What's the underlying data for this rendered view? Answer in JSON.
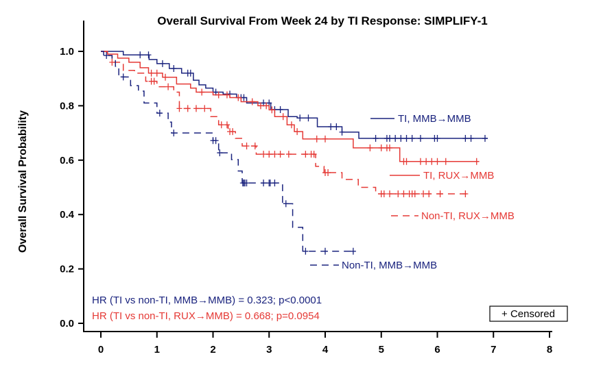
{
  "chart_data": {
    "type": "line",
    "subtype": "kaplan-meier step",
    "title": "Overall Survival From Week 24 by TI Response: SIMPLIFY-1",
    "xlabel": "",
    "ylabel": "Overall Survival Probability",
    "xlim": [
      0,
      8
    ],
    "ylim": [
      0,
      1.1
    ],
    "x_ticks": [
      "0",
      "1",
      "2",
      "3",
      "4",
      "5",
      "6",
      "7",
      "8"
    ],
    "y_ticks": [
      "0.0",
      "0.2",
      "0.4",
      "0.6",
      "0.8",
      "1.0"
    ],
    "grid": false,
    "series": [
      {
        "name": "TI, MMB→MMB",
        "color": "#1a237e",
        "dash": false,
        "steps": [
          [
            0,
            1.0
          ],
          [
            0.4,
            0.987
          ],
          [
            0.86,
            0.97
          ],
          [
            1.0,
            0.955
          ],
          [
            1.22,
            0.937
          ],
          [
            1.44,
            0.92
          ],
          [
            1.65,
            0.894
          ],
          [
            1.75,
            0.877
          ],
          [
            1.87,
            0.865
          ],
          [
            2.0,
            0.85
          ],
          [
            2.18,
            0.843
          ],
          [
            2.42,
            0.83
          ],
          [
            2.6,
            0.81
          ],
          [
            3.03,
            0.786
          ],
          [
            3.34,
            0.76
          ],
          [
            3.5,
            0.755
          ],
          [
            3.86,
            0.723
          ],
          [
            4.3,
            0.703
          ],
          [
            4.6,
            0.68
          ],
          [
            6.9,
            0.68
          ]
        ],
        "censored": [
          0.7,
          0.85,
          1.1,
          1.3,
          1.55,
          1.6,
          2.05,
          2.3,
          2.5,
          2.55,
          2.9,
          3.0,
          3.1,
          3.2,
          3.55,
          3.7,
          4.1,
          4.2,
          4.3,
          4.9,
          5.1,
          5.15,
          5.25,
          5.35,
          5.45,
          5.55,
          5.7,
          5.95,
          6.0,
          6.5,
          6.6,
          6.85
        ]
      },
      {
        "name": "TI, RUX→MMB",
        "color": "#e53935",
        "dash": false,
        "steps": [
          [
            0,
            1.0
          ],
          [
            0.12,
            0.99
          ],
          [
            0.3,
            0.975
          ],
          [
            0.5,
            0.96
          ],
          [
            0.7,
            0.94
          ],
          [
            0.85,
            0.92
          ],
          [
            1.1,
            0.905
          ],
          [
            1.35,
            0.88
          ],
          [
            1.6,
            0.865
          ],
          [
            1.7,
            0.85
          ],
          [
            2.0,
            0.84
          ],
          [
            2.3,
            0.83
          ],
          [
            2.5,
            0.815
          ],
          [
            2.8,
            0.8
          ],
          [
            3.0,
            0.785
          ],
          [
            3.1,
            0.76
          ],
          [
            3.32,
            0.73
          ],
          [
            3.45,
            0.705
          ],
          [
            3.6,
            0.678
          ],
          [
            4.5,
            0.645
          ],
          [
            5.33,
            0.595
          ],
          [
            6.74,
            0.595
          ]
        ],
        "censored": [
          0.9,
          1.0,
          1.15,
          1.8,
          2.1,
          2.25,
          2.45,
          2.7,
          2.85,
          2.95,
          3.05,
          3.25,
          3.4,
          3.5,
          3.85,
          4.0,
          4.8,
          5.0,
          5.1,
          5.15,
          5.4,
          5.45,
          5.7,
          5.8,
          5.9,
          6.0,
          6.15,
          6.7
        ]
      },
      {
        "name": "Non-TI, RUX→MMB",
        "color": "#e53935",
        "dash": true,
        "steps": [
          [
            0,
            1.0
          ],
          [
            0.1,
            0.985
          ],
          [
            0.2,
            0.96
          ],
          [
            0.4,
            0.93
          ],
          [
            0.6,
            0.92
          ],
          [
            0.8,
            0.89
          ],
          [
            1.0,
            0.87
          ],
          [
            1.3,
            0.85
          ],
          [
            1.4,
            0.79
          ],
          [
            1.96,
            0.76
          ],
          [
            2.1,
            0.73
          ],
          [
            2.27,
            0.705
          ],
          [
            2.4,
            0.68
          ],
          [
            2.52,
            0.652
          ],
          [
            2.77,
            0.622
          ],
          [
            3.83,
            0.577
          ],
          [
            3.98,
            0.554
          ],
          [
            4.3,
            0.529
          ],
          [
            4.59,
            0.5
          ],
          [
            4.9,
            0.476
          ],
          [
            6.52,
            0.476
          ]
        ],
        "censored": [
          0.2,
          0.9,
          0.95,
          1.2,
          1.4,
          1.55,
          1.7,
          1.85,
          2.15,
          2.25,
          2.3,
          2.35,
          2.6,
          2.75,
          2.9,
          3.0,
          3.1,
          3.2,
          3.35,
          3.65,
          3.75,
          3.8,
          4.0,
          4.05,
          5.0,
          5.05,
          5.15,
          5.3,
          5.4,
          5.5,
          5.55,
          5.6,
          5.75,
          5.85,
          6.05,
          6.5
        ]
      },
      {
        "name": "Non-TI, MMB→MMB",
        "color": "#1a237e",
        "dash": true,
        "steps": [
          [
            0,
            1.0
          ],
          [
            0.05,
            0.985
          ],
          [
            0.2,
            0.97
          ],
          [
            0.26,
            0.945
          ],
          [
            0.32,
            0.906
          ],
          [
            0.53,
            0.874
          ],
          [
            0.67,
            0.854
          ],
          [
            0.77,
            0.81
          ],
          [
            1.0,
            0.773
          ],
          [
            1.2,
            0.74
          ],
          [
            1.26,
            0.7
          ],
          [
            2.0,
            0.672
          ],
          [
            2.1,
            0.627
          ],
          [
            2.33,
            0.602
          ],
          [
            2.45,
            0.56
          ],
          [
            2.52,
            0.516
          ],
          [
            3.24,
            0.44
          ],
          [
            3.42,
            0.353
          ],
          [
            3.6,
            0.265
          ],
          [
            4.54,
            0.265
          ]
        ],
        "censored": [
          0.1,
          0.4,
          1.05,
          1.3,
          2.0,
          2.05,
          2.12,
          2.53,
          2.55,
          2.57,
          2.6,
          2.9,
          3.0,
          3.02,
          3.1,
          3.3,
          3.65,
          4.0,
          4.5
        ]
      }
    ],
    "legend_labels": [
      "TI, MMB→MMB",
      "TI, RUX→MMB",
      "Non-TI, RUX→MMB",
      "Non-TI, MMB→MMB"
    ],
    "annotations": {
      "hr_mmb": "HR (TI vs non-TI, MMB→MMB) = 0.323; p<0.0001",
      "hr_rux": "HR (TI vs non-TI, RUX→MMB) = 0.668; p=0.0954",
      "censored_key": "+ Censored"
    }
  }
}
